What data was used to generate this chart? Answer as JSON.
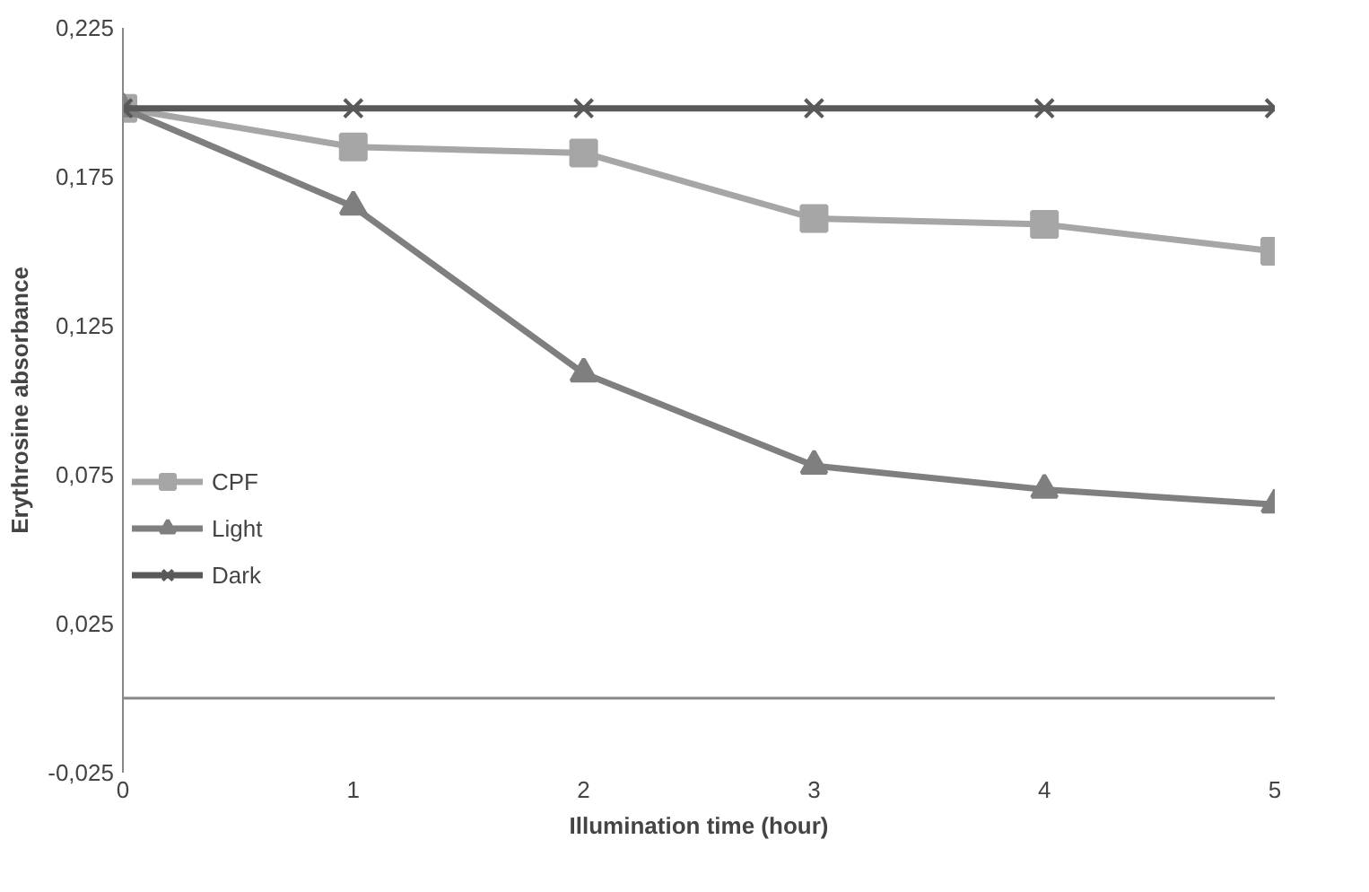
{
  "chart_data": {
    "type": "line",
    "xlabel": "Illumination time (hour)",
    "ylabel": "Erythrosine absorbance",
    "x": [
      0,
      1,
      2,
      3,
      4,
      5
    ],
    "xlim": [
      0,
      5
    ],
    "xticks": [
      0,
      1,
      2,
      3,
      4,
      5
    ],
    "ylim": [
      -0.025,
      0.225
    ],
    "yticks": [
      {
        "value": -0.025,
        "label": "-0,025"
      },
      {
        "value": 0.025,
        "label": "0,025"
      },
      {
        "value": 0.075,
        "label": "0,075"
      },
      {
        "value": 0.125,
        "label": "0,125"
      },
      {
        "value": 0.175,
        "label": "0,175"
      },
      {
        "value": 0.225,
        "label": "0,225"
      }
    ],
    "grid": false,
    "legend": "left",
    "ref_lines": [
      {
        "axis": "y",
        "value": 0,
        "color": "#888888"
      }
    ],
    "series": [
      {
        "name": "CPF",
        "color": "#a6a6a6",
        "marker": "square",
        "values": [
          0.198,
          0.185,
          0.183,
          0.161,
          0.159,
          0.15
        ]
      },
      {
        "name": "Light",
        "color": "#7f7f7f",
        "marker": "triangle",
        "values": [
          0.198,
          0.165,
          0.109,
          0.078,
          0.07,
          0.065
        ]
      },
      {
        "name": "Dark",
        "color": "#595959",
        "marker": "cross",
        "values": [
          0.198,
          0.198,
          0.198,
          0.198,
          0.198,
          0.198
        ]
      }
    ]
  }
}
